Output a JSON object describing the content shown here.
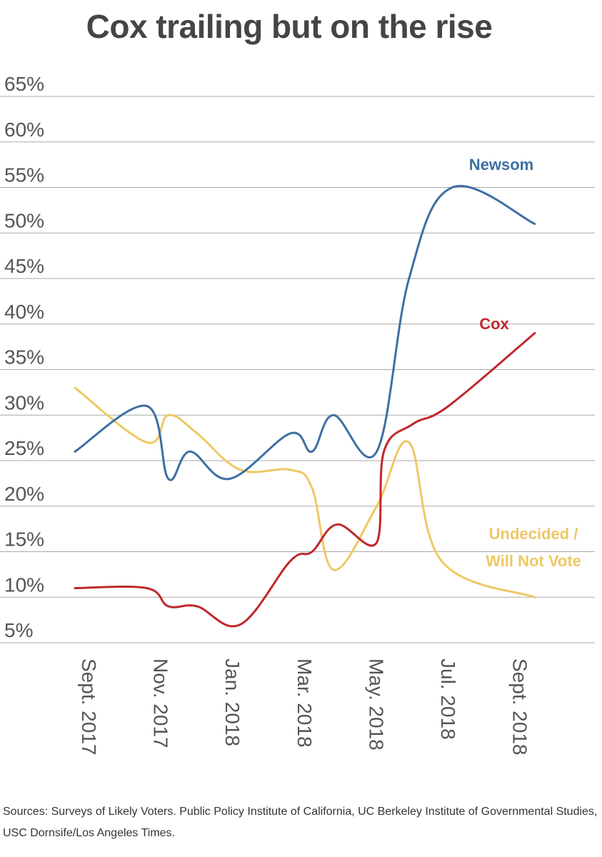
{
  "title": "Cox trailing but on the rise",
  "sources": "Sources: Surveys of Likely Voters. Public Policy Institute of California,  UC Berkeley Institute of Governmental Studies, USC Dornsife/Los Angeles Times.",
  "chart_data": {
    "type": "line",
    "y_ticks": [
      "5%",
      "10%",
      "15%",
      "20%",
      "25%",
      "30%",
      "35%",
      "40%",
      "45%",
      "50%",
      "55%",
      "60%",
      "65%"
    ],
    "y_tick_values": [
      5,
      10,
      15,
      20,
      25,
      30,
      35,
      40,
      45,
      50,
      55,
      60,
      65
    ],
    "ylim": [
      5,
      65
    ],
    "x_ticks": [
      {
        "label": "Sept. 2017",
        "value": 0
      },
      {
        "label": "Nov. 2017",
        "value": 2
      },
      {
        "label": "Jan. 2018",
        "value": 4
      },
      {
        "label": "Mar. 2018",
        "value": 6
      },
      {
        "label": "May. 2018",
        "value": 8
      },
      {
        "label": "Jul. 2018",
        "value": 10
      },
      {
        "label": "Sept. 2018",
        "value": 12
      }
    ],
    "grid": true,
    "series": [
      {
        "name": "Newsom",
        "label_lines": [
          "Newsom"
        ],
        "color": "#3e6fa3",
        "points": [
          [
            0,
            26
          ],
          [
            2,
            31
          ],
          [
            2.6,
            23
          ],
          [
            3.2,
            26
          ],
          [
            4.3,
            23
          ],
          [
            6,
            28
          ],
          [
            6.6,
            26
          ],
          [
            7.2,
            30
          ],
          [
            8.4,
            26
          ],
          [
            9.3,
            45
          ],
          [
            10.5,
            55
          ],
          [
            12.8,
            51
          ]
        ]
      },
      {
        "name": "Cox",
        "label_lines": [
          "Cox"
        ],
        "color": "#c0282d",
        "points": [
          [
            0,
            11
          ],
          [
            2,
            11
          ],
          [
            2.6,
            9
          ],
          [
            3.4,
            9
          ],
          [
            4.6,
            7
          ],
          [
            6,
            14
          ],
          [
            6.6,
            15
          ],
          [
            7.3,
            18
          ],
          [
            8.4,
            16
          ],
          [
            8.6,
            26
          ],
          [
            9.4,
            29
          ],
          [
            10.4,
            31
          ],
          [
            12.8,
            39
          ]
        ]
      },
      {
        "name": "Undecided / Will Not Vote",
        "label_lines": [
          "Undecided /",
          "Will Not Vote"
        ],
        "color": "#eec865",
        "points": [
          [
            0,
            33
          ],
          [
            2,
            27
          ],
          [
            2.6,
            30
          ],
          [
            3.4,
            28
          ],
          [
            4.6,
            24
          ],
          [
            6,
            24
          ],
          [
            6.6,
            22
          ],
          [
            7.2,
            13
          ],
          [
            8.4,
            20
          ],
          [
            9.3,
            27
          ],
          [
            10.2,
            14
          ],
          [
            12.8,
            10
          ]
        ]
      }
    ]
  }
}
